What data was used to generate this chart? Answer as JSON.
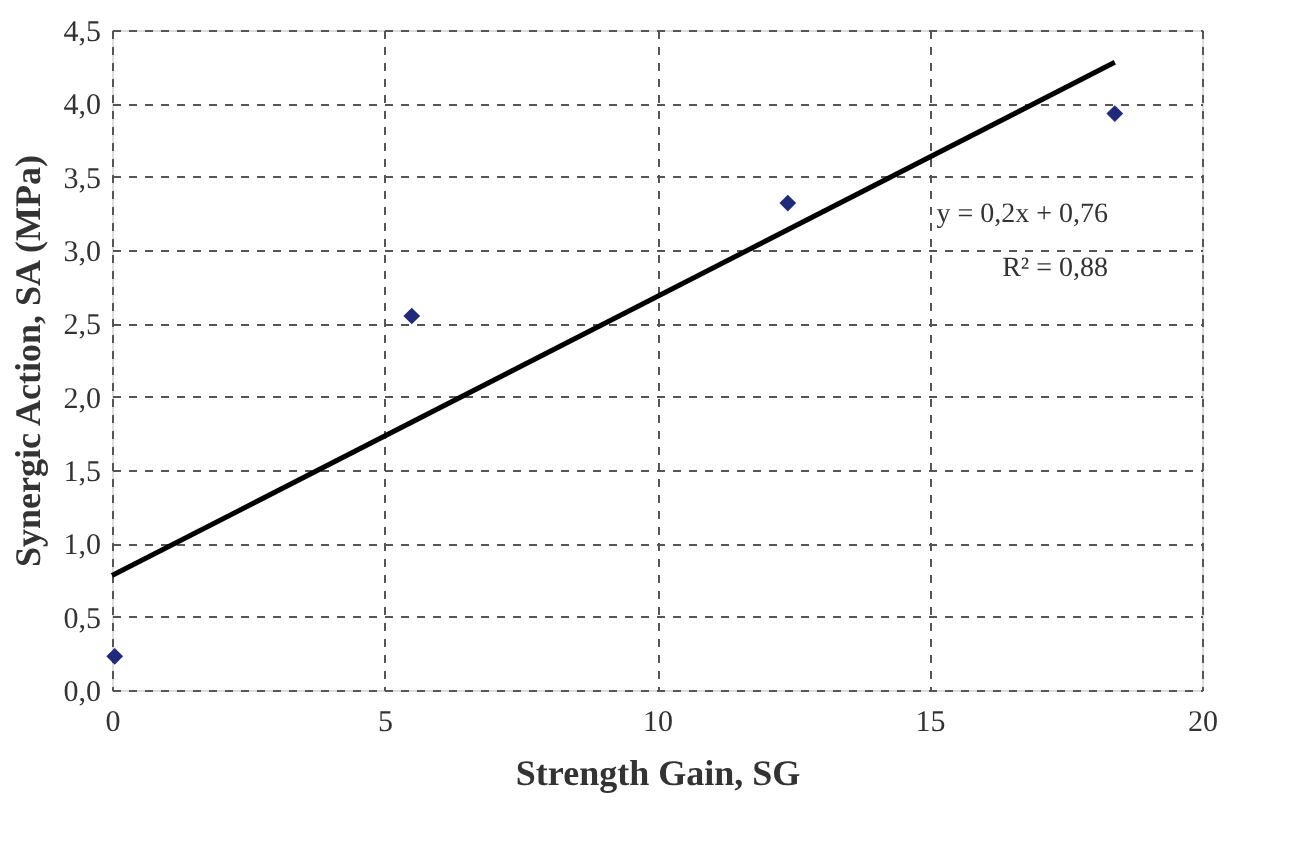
{
  "chart_data": {
    "type": "scatter",
    "xlabel": "Strength Gain, SG",
    "ylabel": "Synergic Action, SA (MPa)",
    "xlim": [
      0,
      20
    ],
    "xticks": [
      0,
      5,
      10,
      15,
      20
    ],
    "ylim": [
      0,
      4.5
    ],
    "yticks": [
      {
        "value": 0,
        "label": "0,0"
      },
      {
        "value": 0.5,
        "label": "0,5"
      },
      {
        "value": 1,
        "label": "1,0"
      },
      {
        "value": 1.5,
        "label": "1,5"
      },
      {
        "value": 2,
        "label": "2,0"
      },
      {
        "value": 2.5,
        "label": "2,5"
      },
      {
        "value": 3,
        "label": "3,0"
      },
      {
        "value": 3.5,
        "label": "3,5"
      },
      {
        "value": 4,
        "label": "4,0"
      },
      {
        "value": 4.5,
        "label": "4,5"
      }
    ],
    "grid": true,
    "marker": "diamond",
    "series": [
      {
        "color": "#1f2a7a",
        "x": [
          0.05,
          5.5,
          12.4,
          18.4
        ],
        "values": [
          0.23,
          2.55,
          3.32,
          3.93
        ]
      },
      {
        "type": "line",
        "color": "#000000",
        "line_style": "solid",
        "marker": "none",
        "x": [
          0,
          18.4
        ],
        "values": [
          0.78,
          4.28
        ]
      }
    ],
    "annotations": [
      "y = 0,2x + 0,76",
      "R² = 0,88"
    ]
  }
}
